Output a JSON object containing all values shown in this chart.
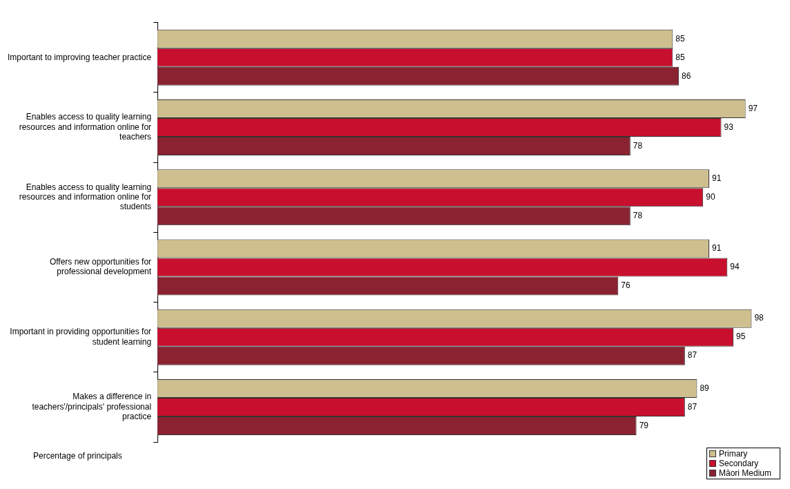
{
  "chart_data": {
    "type": "bar",
    "orientation": "horizontal",
    "xlabel": "Percentage of principals",
    "categories": [
      "Important to improving teacher practice",
      "Enables access to quality learning resources and information online for teachers",
      "Enables access to quality learning resources and information online for students",
      "Offers new opportunities for professional development",
      "Important in providing opportunities for student learning",
      "Makes a difference in teachers'/principals' professional practice"
    ],
    "series": [
      {
        "name": "Primary",
        "color": "#cfbf8f",
        "values": [
          85,
          97,
          91,
          91,
          98,
          89
        ]
      },
      {
        "name": "Secondary",
        "color": "#c8102e",
        "values": [
          85,
          93,
          90,
          94,
          95,
          87
        ]
      },
      {
        "name": "Māori Medium",
        "color": "#8b2232",
        "values": [
          86,
          78,
          78,
          76,
          87,
          79
        ]
      }
    ],
    "data_labels": true,
    "legend": "bottom right",
    "grid": false
  }
}
